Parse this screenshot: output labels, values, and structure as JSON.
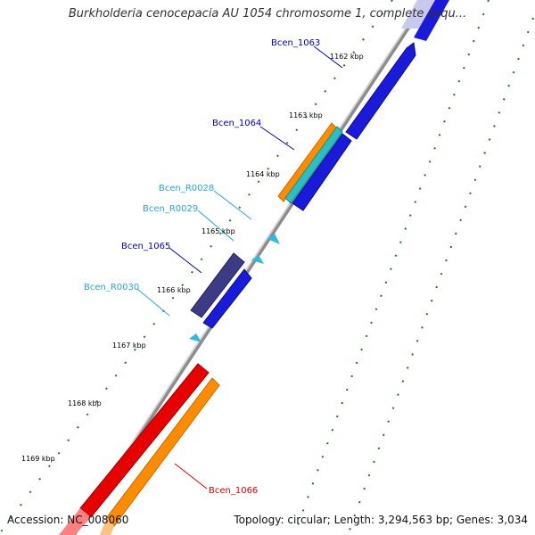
{
  "title": "Burkholderia cenocepacia AU 1054 chromosome 1, complete sequ...",
  "footer": {
    "accession": "Accession: NC_008060",
    "summary": "Topology: circular; Length: 3,294,563 bp; Genes: 3,034"
  },
  "colors": {
    "backbone": "#8c8c8c",
    "cds_blue": "#1a1ad9",
    "cds_navy": "#3d3a86",
    "cds_red": "#e60000",
    "cds_orange": "#ff8c00",
    "cds_teal": "#2bbfbf",
    "rna_cyan": "#33b5e5",
    "tick_green": "#1a7a1a",
    "label_blue": "#0000cc",
    "label_cyan": "#29a3e0",
    "label_red": "#e60000"
  },
  "scale_ticks": [
    "1162 kbp",
    "1163 kbp",
    "1164 kbp",
    "1165 kbp",
    "1166 kbp",
    "1167 kbp",
    "1168 kbp",
    "1169 kbp"
  ],
  "features": [
    {
      "id": "Bcen_1063",
      "color": "label_blue"
    },
    {
      "id": "Bcen_1064",
      "color": "label_blue"
    },
    {
      "id": "Bcen_R0028",
      "color": "label_cyan"
    },
    {
      "id": "Bcen_R0029",
      "color": "label_cyan"
    },
    {
      "id": "Bcen_1065",
      "color": "label_blue"
    },
    {
      "id": "Bcen_R0030",
      "color": "label_cyan"
    },
    {
      "id": "Bcen_1066",
      "color": "label_red"
    }
  ]
}
